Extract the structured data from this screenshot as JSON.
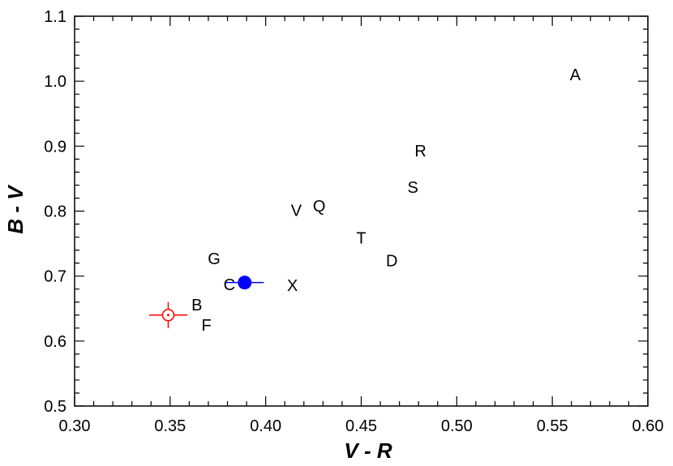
{
  "chart_data": {
    "type": "scatter",
    "title": "",
    "xlabel": "V - R",
    "ylabel": "B - V",
    "xlim": [
      0.3,
      0.6
    ],
    "ylim": [
      0.5,
      1.1
    ],
    "xticks": [
      "0.30",
      "0.35",
      "0.40",
      "0.45",
      "0.50",
      "0.55",
      "0.60"
    ],
    "yticks": [
      "0.5",
      "0.6",
      "0.7",
      "0.8",
      "0.9",
      "1.0",
      "1.1"
    ],
    "grid": false,
    "labeled_points": [
      {
        "label": "A",
        "x": 0.562,
        "y": 1.01
      },
      {
        "label": "R",
        "x": 0.481,
        "y": 0.893
      },
      {
        "label": "S",
        "x": 0.477,
        "y": 0.837
      },
      {
        "label": "Q",
        "x": 0.428,
        "y": 0.808
      },
      {
        "label": "V",
        "x": 0.416,
        "y": 0.801
      },
      {
        "label": "T",
        "x": 0.45,
        "y": 0.759
      },
      {
        "label": "D",
        "x": 0.466,
        "y": 0.724
      },
      {
        "label": "G",
        "x": 0.373,
        "y": 0.727
      },
      {
        "label": "C",
        "x": 0.381,
        "y": 0.687
      },
      {
        "label": "X",
        "x": 0.414,
        "y": 0.686
      },
      {
        "label": "B",
        "x": 0.364,
        "y": 0.656
      },
      {
        "label": "F",
        "x": 0.369,
        "y": 0.625
      }
    ],
    "special_points": [
      {
        "marker": "sun-symbol",
        "x": 0.349,
        "y": 0.64,
        "xerr": 0.01,
        "yerr": 0.02,
        "color": "#ff0000"
      },
      {
        "marker": "filled-circle",
        "x": 0.389,
        "y": 0.69,
        "xerr": 0.01,
        "yerr": 0.0,
        "color": "#0000ff"
      }
    ]
  }
}
